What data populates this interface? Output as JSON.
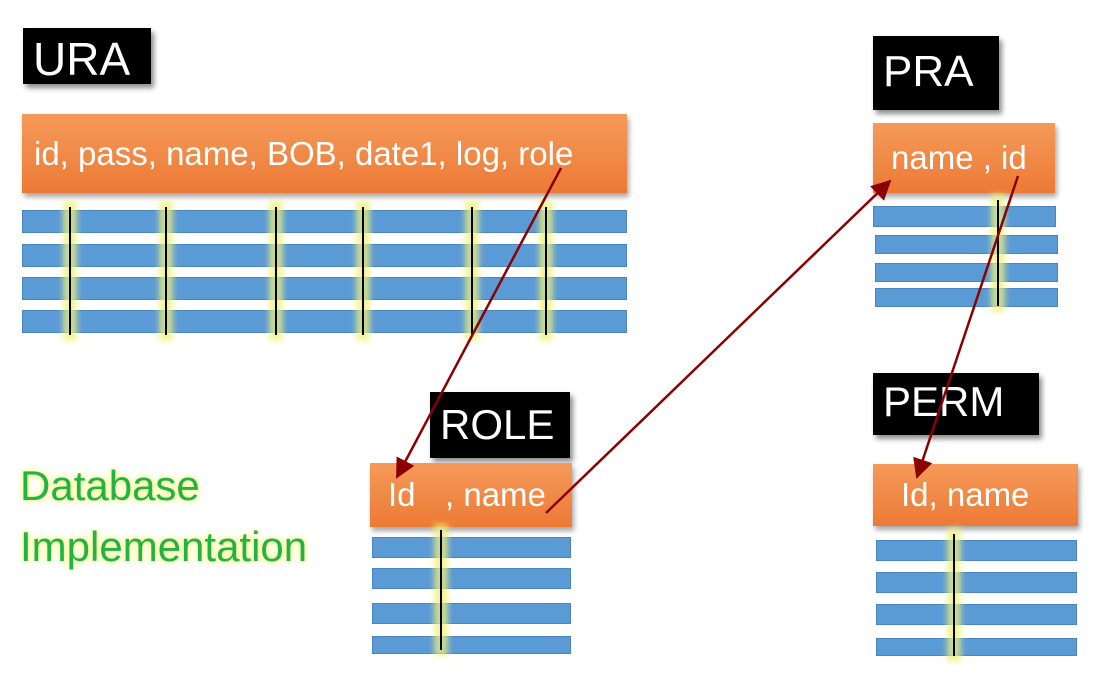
{
  "tables": {
    "ura": {
      "title": "URA",
      "columns": "id, pass, name, BOB, date1, log, role"
    },
    "pra": {
      "title": "PRA",
      "columns": "name , id"
    },
    "role": {
      "title": "ROLE",
      "columns_left": "Id",
      "columns_right": ", name"
    },
    "perm": {
      "title": "PERM",
      "columns": "Id,  name"
    }
  },
  "caption": {
    "line1": "Database",
    "line2": "Implementation"
  },
  "colors": {
    "header_fill": "#ec7a35",
    "row_fill": "#5b9bd5",
    "label_fill": "#000000",
    "arrow": "#8b0000",
    "caption_text": "#22b24c"
  }
}
